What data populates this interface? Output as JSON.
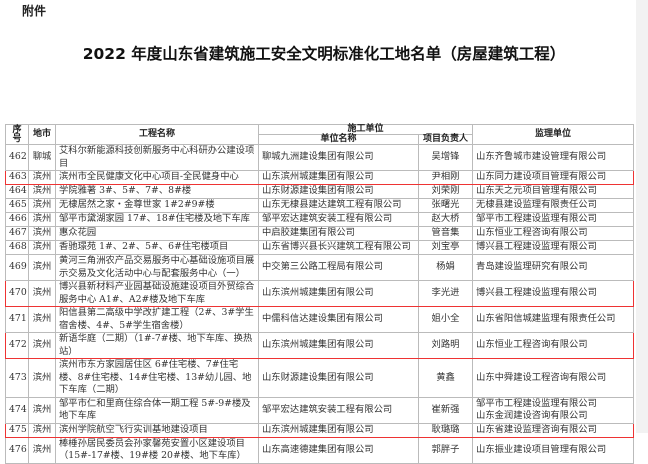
{
  "attachment_label": "附件",
  "title": "2022 年度山东省建筑施工安全文明标准化工地名单（房屋建筑工程）",
  "headers": {
    "no": "序号",
    "city": "地市",
    "project": "工程名称",
    "contractor_group": "施工单位",
    "contractor": "单位名称",
    "manager": "项目负责人",
    "supervisor": "监理单位"
  },
  "highlight_color": "#e33333",
  "rows": [
    {
      "no": "462",
      "city": "聊城",
      "project": "艾科尔新能源科技创新服务中心科研办公建设项目",
      "contractor": "聊城九洲建设集团有限公司",
      "manager": "吴增锋",
      "supervisor": "山东齐鲁城市建设管理有限公司",
      "hl": false
    },
    {
      "no": "463",
      "city": "滨州",
      "project": "滨州市全民健康文化中心项目-全民健身中心",
      "contractor": "山东滨州城建集团有限公司",
      "manager": "尹相刚",
      "supervisor": "山东同力建设项目管理有限公司",
      "hl": true
    },
    {
      "no": "464",
      "city": "滨州",
      "project": "学院雅著 3#、5#、7#、8#楼",
      "contractor": "山东财源建设集团有限公司",
      "manager": "刘荣刚",
      "supervisor": "山东天之元项目管理有限公司",
      "hl": false
    },
    {
      "no": "465",
      "city": "滨州",
      "project": "无棣居然之家・金尊世家 1#2#9#楼",
      "contractor": "山东无棣县建达建筑工程有限公司",
      "manager": "张曙光",
      "supervisor": "无棣县建设监理有限责任公司",
      "hl": false
    },
    {
      "no": "466",
      "city": "滨州",
      "project": "邹平市黛湖家园 17#、18#住宅楼及地下车库",
      "contractor": "邹平宏达建筑安装工程有限公司",
      "manager": "赵大桥",
      "supervisor": "邹平市工程建设监理有限公司",
      "hl": false
    },
    {
      "no": "467",
      "city": "滨州",
      "project": "惠众花园",
      "contractor": "中启胶建集团有限公司",
      "manager": "管音集",
      "supervisor": "山东恒业工程咨询有限公司",
      "hl": false
    },
    {
      "no": "468",
      "city": "滨州",
      "project": "香驰璟苑 1#、2#、5#、6#住宅楼项目",
      "contractor": "山东省博兴县长兴建筑工程有限公司",
      "manager": "刘宝亭",
      "supervisor": "博兴县工程建设监理有限公司",
      "hl": false
    },
    {
      "no": "469",
      "city": "滨州",
      "project": "黄河三角洲农产品交易服务中心基础设施项目展示交易及文化活动中心与配套服务中心（一）",
      "contractor": "中交第三公路工程局有限公司",
      "manager": "杨娟",
      "supervisor": "青岛建设监理研究有限公司",
      "hl": false
    },
    {
      "no": "470",
      "city": "滨州",
      "project": "博兴县新材料产业园基础设施建设项目外贸综合服务中心 A1#、A2#楼及地下车库",
      "contractor": "山东滨州城建集团有限公司",
      "manager": "李光进",
      "supervisor": "博兴县工程建设监理有限公司",
      "hl": true
    },
    {
      "no": "471",
      "city": "滨州",
      "project": "阳信县第二高级中学改扩建工程（2#、3#学生宿舍楼、4#、5#学生宿舍楼）",
      "contractor": "中儒科信达建设集团有限公司",
      "manager": "姐小全",
      "supervisor": "山东省阳信城建监理有限责任公司",
      "hl": false
    },
    {
      "no": "472",
      "city": "滨州",
      "project": "新语华庭（二期）（1#-7#楼、地下车库、换热站）",
      "contractor": "山东滨州城建集团有限公司",
      "manager": "刘路明",
      "supervisor": "山东恒业工程咨询有限公司",
      "hl": true
    },
    {
      "no": "473",
      "city": "滨州",
      "project": "滨州市东方家园居住区 6#住宅楼、7#住宅楼、8#住宅楼、14#住宅楼、13#幼儿园、地下车库（二期）",
      "contractor": "山东财源建设集团有限公司",
      "manager": "黄鑫",
      "supervisor": "山东中舜建设工程咨询有限公司",
      "hl": false
    },
    {
      "no": "474",
      "city": "滨州",
      "project": "邹平市仁和里商住综合体一期工程 5#-9#楼及地下车库",
      "contractor": "邹平宏达建筑安装工程有限公司",
      "manager": "崔新强",
      "supervisor": "邹平市工程建设监理有限公司\n山东金润建设咨询有限公司",
      "hl": false
    },
    {
      "no": "475",
      "city": "滨州",
      "project": "滨州学院航空飞行实训基地建设项目",
      "contractor": "山东滨州城建集团有限公司",
      "manager": "耿璐璐",
      "supervisor": "山东省建设监理咨询有限公司",
      "hl": true
    },
    {
      "no": "476",
      "city": "滨州",
      "project": "棒棰孙居民委员会孙家馨苑安置小区建设项目（15#-17#楼、19#楼 20#楼、地下车库）",
      "contractor": "山东高速德建集团有限公司",
      "manager": "郭胖子",
      "supervisor": "山东振业建设项目管理有限公司",
      "hl": false
    }
  ]
}
